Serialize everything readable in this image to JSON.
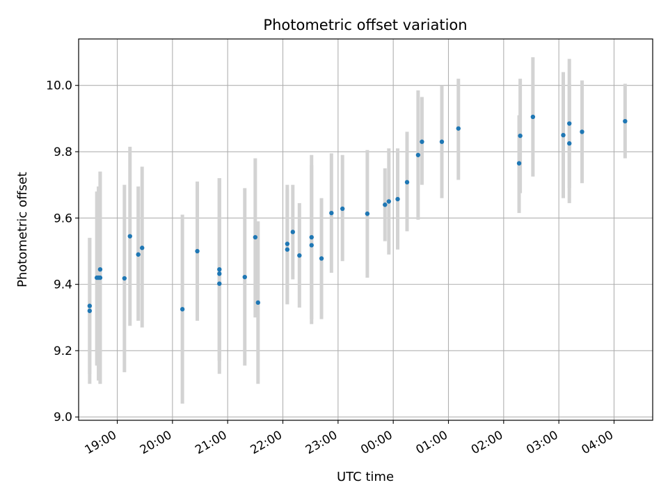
{
  "chart_data": {
    "type": "scatter",
    "title": "Photometric offset variation",
    "xlabel": "UTC time",
    "ylabel": "Photometric offset",
    "x_unit": "hours past 18:00 UTC",
    "x_ticks": [
      {
        "x": 1,
        "label": "19:00"
      },
      {
        "x": 2,
        "label": "20:00"
      },
      {
        "x": 3,
        "label": "21:00"
      },
      {
        "x": 4,
        "label": "22:00"
      },
      {
        "x": 5,
        "label": "23:00"
      },
      {
        "x": 6,
        "label": "00:00"
      },
      {
        "x": 7,
        "label": "01:00"
      },
      {
        "x": 8,
        "label": "02:00"
      },
      {
        "x": 9,
        "label": "03:00"
      },
      {
        "x": 10,
        "label": "04:00"
      }
    ],
    "y_ticks": [
      {
        "y": 9.0,
        "label": "9.0"
      },
      {
        "y": 9.2,
        "label": "9.2"
      },
      {
        "y": 9.4,
        "label": "9.4"
      },
      {
        "y": 9.6,
        "label": "9.6"
      },
      {
        "y": 9.8,
        "label": "9.8"
      },
      {
        "y": 10.0,
        "label": "10.0"
      }
    ],
    "xlim": [
      0.3,
      10.7
    ],
    "ylim": [
      8.99,
      10.14
    ],
    "grid": true,
    "point_color": "#1f77b4",
    "errorbar_color": "#d3d3d3",
    "points": [
      {
        "x": 0.5,
        "y": 9.335,
        "lo": 9.13,
        "hi": 9.54
      },
      {
        "x": 0.5,
        "y": 9.32,
        "lo": 9.1,
        "hi": 9.54
      },
      {
        "x": 0.63,
        "y": 9.42,
        "lo": 9.155,
        "hi": 9.68
      },
      {
        "x": 0.66,
        "y": 9.42,
        "lo": 9.11,
        "hi": 9.695
      },
      {
        "x": 0.69,
        "y": 9.445,
        "lo": 9.1,
        "hi": 9.74
      },
      {
        "x": 0.69,
        "y": 9.42,
        "lo": 9.1,
        "hi": 9.74
      },
      {
        "x": 1.13,
        "y": 9.418,
        "lo": 9.135,
        "hi": 9.7
      },
      {
        "x": 1.23,
        "y": 9.545,
        "lo": 9.275,
        "hi": 9.815
      },
      {
        "x": 1.38,
        "y": 9.49,
        "lo": 9.29,
        "hi": 9.695
      },
      {
        "x": 1.45,
        "y": 9.51,
        "lo": 9.27,
        "hi": 9.755
      },
      {
        "x": 2.18,
        "y": 9.325,
        "lo": 9.04,
        "hi": 9.61
      },
      {
        "x": 2.45,
        "y": 9.5,
        "lo": 9.29,
        "hi": 9.71
      },
      {
        "x": 2.85,
        "y": 9.445,
        "lo": 9.17,
        "hi": 9.72
      },
      {
        "x": 2.85,
        "y": 9.432,
        "lo": 9.17,
        "hi": 9.72
      },
      {
        "x": 2.85,
        "y": 9.402,
        "lo": 9.13,
        "hi": 9.72
      },
      {
        "x": 3.31,
        "y": 9.422,
        "lo": 9.155,
        "hi": 9.69
      },
      {
        "x": 3.5,
        "y": 9.542,
        "lo": 9.3,
        "hi": 9.78
      },
      {
        "x": 3.55,
        "y": 9.345,
        "lo": 9.1,
        "hi": 9.59
      },
      {
        "x": 4.08,
        "y": 9.522,
        "lo": 9.34,
        "hi": 9.7
      },
      {
        "x": 4.08,
        "y": 9.505,
        "lo": 9.34,
        "hi": 9.685
      },
      {
        "x": 4.18,
        "y": 9.558,
        "lo": 9.415,
        "hi": 9.7
      },
      {
        "x": 4.3,
        "y": 9.487,
        "lo": 9.33,
        "hi": 9.645
      },
      {
        "x": 4.52,
        "y": 9.542,
        "lo": 9.295,
        "hi": 9.79
      },
      {
        "x": 4.52,
        "y": 9.518,
        "lo": 9.28,
        "hi": 9.76
      },
      {
        "x": 4.7,
        "y": 9.478,
        "lo": 9.295,
        "hi": 9.66
      },
      {
        "x": 4.88,
        "y": 9.615,
        "lo": 9.435,
        "hi": 9.795
      },
      {
        "x": 5.08,
        "y": 9.628,
        "lo": 9.47,
        "hi": 9.79
      },
      {
        "x": 5.53,
        "y": 9.613,
        "lo": 9.42,
        "hi": 9.805
      },
      {
        "x": 5.85,
        "y": 9.64,
        "lo": 9.53,
        "hi": 9.75
      },
      {
        "x": 5.92,
        "y": 9.65,
        "lo": 9.49,
        "hi": 9.81
      },
      {
        "x": 6.08,
        "y": 9.657,
        "lo": 9.505,
        "hi": 9.81
      },
      {
        "x": 6.25,
        "y": 9.708,
        "lo": 9.56,
        "hi": 9.86
      },
      {
        "x": 6.45,
        "y": 9.79,
        "lo": 9.595,
        "hi": 9.985
      },
      {
        "x": 6.52,
        "y": 9.83,
        "lo": 9.7,
        "hi": 9.965
      },
      {
        "x": 6.88,
        "y": 9.83,
        "lo": 9.66,
        "hi": 10.0
      },
      {
        "x": 7.18,
        "y": 9.87,
        "lo": 9.715,
        "hi": 10.02
      },
      {
        "x": 8.28,
        "y": 9.765,
        "lo": 9.615,
        "hi": 9.91
      },
      {
        "x": 8.3,
        "y": 9.848,
        "lo": 9.675,
        "hi": 10.02
      },
      {
        "x": 8.53,
        "y": 9.905,
        "lo": 9.725,
        "hi": 10.085
      },
      {
        "x": 9.08,
        "y": 9.85,
        "lo": 9.66,
        "hi": 10.04
      },
      {
        "x": 9.19,
        "y": 9.885,
        "lo": 9.69,
        "hi": 10.08
      },
      {
        "x": 9.19,
        "y": 9.825,
        "lo": 9.645,
        "hi": 10.005
      },
      {
        "x": 9.42,
        "y": 9.86,
        "lo": 9.705,
        "hi": 10.015
      },
      {
        "x": 10.2,
        "y": 9.892,
        "lo": 9.78,
        "hi": 10.005
      }
    ]
  }
}
